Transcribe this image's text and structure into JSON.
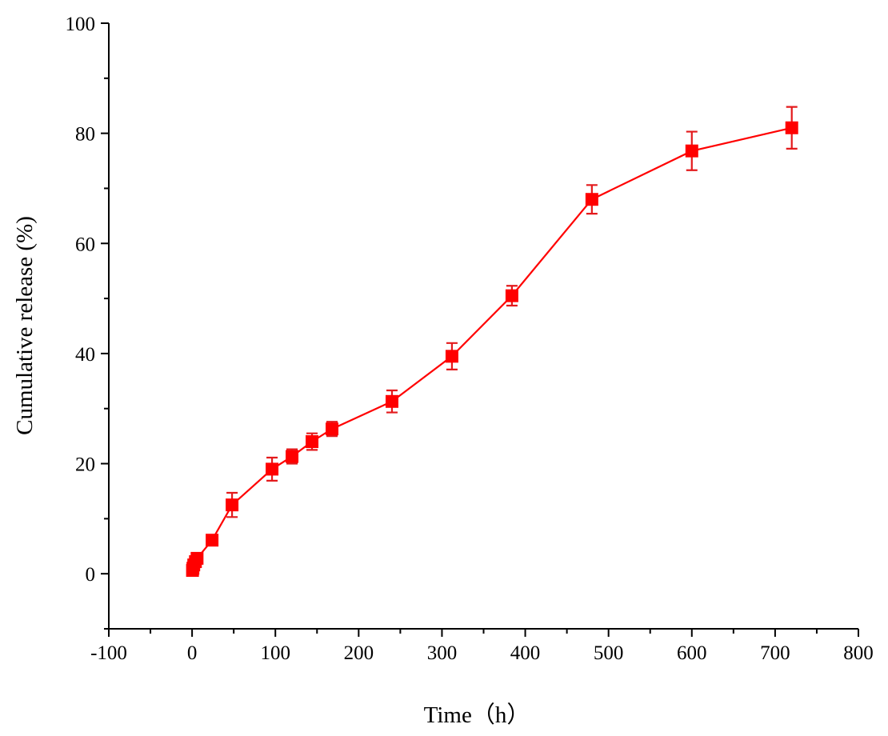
{
  "chart_data": {
    "type": "scatter",
    "title": "",
    "xlabel": "Time（h）",
    "ylabel": "Cumulative release (%)",
    "xlim": [
      -100,
      800
    ],
    "ylim": [
      -10,
      100
    ],
    "xticks": [
      -100,
      0,
      100,
      200,
      300,
      400,
      500,
      600,
      700,
      800
    ],
    "yticks": [
      0,
      20,
      40,
      60,
      80,
      100
    ],
    "grid": false,
    "legend": "none",
    "series": [
      {
        "color": "#ff0000",
        "marker": "square",
        "line": true,
        "x": [
          0.5,
          1,
          2,
          4,
          6,
          24,
          48,
          96,
          120,
          144,
          168,
          240,
          312,
          384,
          480,
          600,
          720
        ],
        "y": [
          0.6,
          1.0,
          1.6,
          2.2,
          2.8,
          6.1,
          12.5,
          19.0,
          21.3,
          24.0,
          26.3,
          31.3,
          39.5,
          50.5,
          68.0,
          76.8,
          81.0
        ],
        "error": [
          0.6,
          0.6,
          0.7,
          0.8,
          0.9,
          0.8,
          2.2,
          2.1,
          1.3,
          1.5,
          1.3,
          2.0,
          2.4,
          1.8,
          2.6,
          3.5,
          3.8
        ]
      }
    ]
  }
}
